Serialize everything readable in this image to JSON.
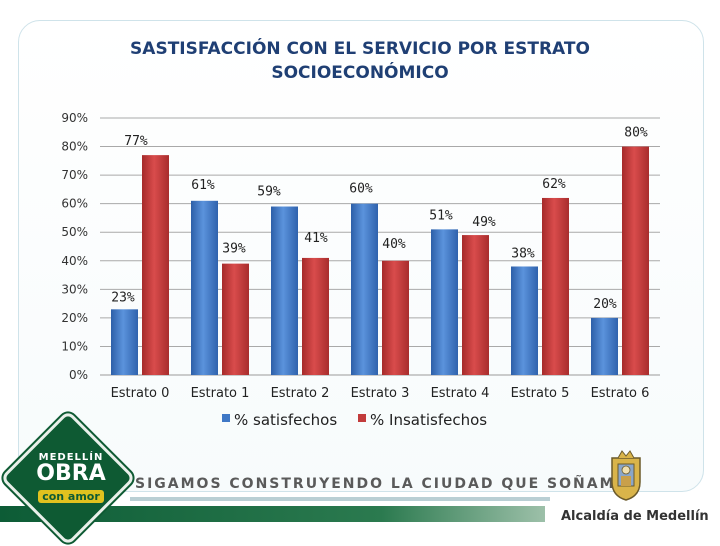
{
  "title_lines": [
    "SASTISFACCIÓN CON EL SERVICIO POR ESTRATO",
    "SOCIOECONÓMICO"
  ],
  "footer": {
    "logo_line1": "MEDELLÍN",
    "logo_line2": "OBRA",
    "logo_line3": "con amor",
    "slogan": "SIGAMOS CONSTRUYENDO LA CIUDAD QUE SOÑAMOS",
    "mayor": "Alcaldía de Medellín"
  },
  "colors": {
    "satisfechos": "#3f78c6",
    "insatisfechos": "#c23b3b",
    "title": "#1f3f74"
  },
  "chart_data": {
    "type": "bar",
    "categories": [
      "Estrato 0",
      "Estrato 1",
      "Estrato 2",
      "Estrato 3",
      "Estrato 4",
      "Estrato 5",
      "Estrato 6"
    ],
    "series": [
      {
        "name": "% satisfechos",
        "values": [
          23,
          61,
          59,
          60,
          51,
          38,
          20
        ],
        "labels": [
          "23%",
          "61%",
          "59%",
          "60%",
          "51%",
          "38%",
          "20%"
        ]
      },
      {
        "name": "% Insatisfechos",
        "values": [
          77,
          39,
          41,
          40,
          49,
          62,
          80
        ],
        "labels": [
          "77%",
          "39%",
          "41%",
          "40%",
          "49%",
          "62%",
          "80%"
        ]
      }
    ],
    "y_ticks": [
      "0%",
      "10%",
      "20%",
      "30%",
      "40%",
      "50%",
      "60%",
      "70%",
      "80%",
      "90%"
    ],
    "ylim": [
      0,
      90
    ],
    "grid": true,
    "legend_position": "bottom"
  }
}
